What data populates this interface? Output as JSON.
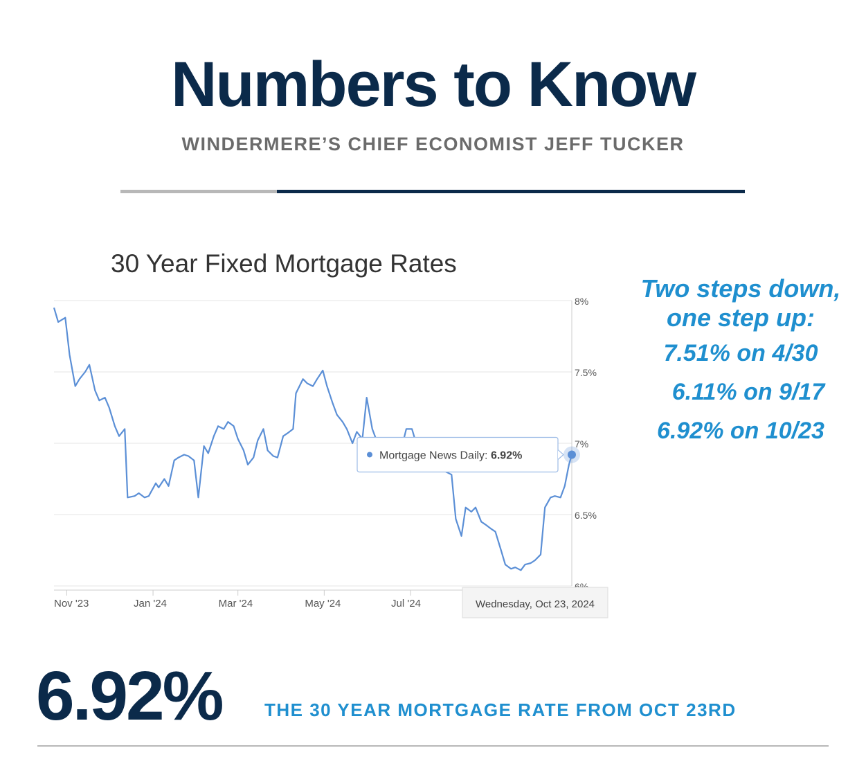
{
  "header": {
    "title": "Numbers to Know",
    "subtitle": "WINDERMERE’S CHIEF ECONOMIST JEFF TUCKER"
  },
  "colors": {
    "navy": "#0b2a4a",
    "subtitle_gray": "#6b6b6b",
    "rule_gray": "#b8b8b8",
    "accent_blue": "#1f8fcf",
    "series_line": "#5b8fd6",
    "grid": "#e6e6e6",
    "axis_text": "#555555"
  },
  "callout": {
    "heading_line1": "Two steps down,",
    "heading_line2": "one step up:",
    "lines": [
      "7.51% on 4/30",
      "6.11% on 9/17",
      "6.92% on 10/23"
    ]
  },
  "highlight": {
    "value": "6.92%",
    "caption": "THE 30 YEAR MORTGAGE RATE FROM OCT 23RD"
  },
  "chart_data": {
    "type": "line",
    "title": "30 Year Fixed Mortgage Rates",
    "ylim": [
      6.0,
      8.0
    ],
    "y_ticks": [
      {
        "value": 8.0,
        "label": "8%"
      },
      {
        "value": 7.5,
        "label": "7.5%"
      },
      {
        "value": 7.0,
        "label": "7%"
      },
      {
        "value": 6.5,
        "label": "6.5%"
      },
      {
        "value": 6.0,
        "label": "6%"
      }
    ],
    "x_ticks": [
      "Nov '23",
      "Jan '24",
      "Mar '24",
      "May '24",
      "Jul '24"
    ],
    "y_axis_position": "right",
    "grid": true,
    "series": [
      {
        "name": "Mortgage News Daily",
        "points": [
          [
            "2023-10-23",
            7.95
          ],
          [
            "2023-10-26",
            7.85
          ],
          [
            "2023-10-31",
            7.88
          ],
          [
            "2023-11-03",
            7.62
          ],
          [
            "2023-11-07",
            7.4
          ],
          [
            "2023-11-10",
            7.45
          ],
          [
            "2023-11-14",
            7.5
          ],
          [
            "2023-11-17",
            7.55
          ],
          [
            "2023-11-21",
            7.37
          ],
          [
            "2023-11-24",
            7.3
          ],
          [
            "2023-11-28",
            7.32
          ],
          [
            "2023-12-01",
            7.25
          ],
          [
            "2023-12-05",
            7.12
          ],
          [
            "2023-12-08",
            7.05
          ],
          [
            "2023-12-12",
            7.1
          ],
          [
            "2023-12-14",
            6.62
          ],
          [
            "2023-12-19",
            6.63
          ],
          [
            "2023-12-22",
            6.65
          ],
          [
            "2023-12-26",
            6.62
          ],
          [
            "2023-12-29",
            6.63
          ],
          [
            "2024-01-03",
            6.72
          ],
          [
            "2024-01-05",
            6.69
          ],
          [
            "2024-01-09",
            6.75
          ],
          [
            "2024-01-12",
            6.7
          ],
          [
            "2024-01-16",
            6.88
          ],
          [
            "2024-01-19",
            6.9
          ],
          [
            "2024-01-23",
            6.92
          ],
          [
            "2024-01-26",
            6.91
          ],
          [
            "2024-01-30",
            6.88
          ],
          [
            "2024-02-02",
            6.62
          ],
          [
            "2024-02-06",
            6.98
          ],
          [
            "2024-02-09",
            6.93
          ],
          [
            "2024-02-13",
            7.05
          ],
          [
            "2024-02-16",
            7.12
          ],
          [
            "2024-02-20",
            7.1
          ],
          [
            "2024-02-23",
            7.15
          ],
          [
            "2024-02-27",
            7.12
          ],
          [
            "2024-03-01",
            7.03
          ],
          [
            "2024-03-05",
            6.95
          ],
          [
            "2024-03-08",
            6.85
          ],
          [
            "2024-03-12",
            6.9
          ],
          [
            "2024-03-15",
            7.02
          ],
          [
            "2024-03-19",
            7.1
          ],
          [
            "2024-03-22",
            6.95
          ],
          [
            "2024-03-26",
            6.91
          ],
          [
            "2024-03-29",
            6.9
          ],
          [
            "2024-04-02",
            7.05
          ],
          [
            "2024-04-05",
            7.07
          ],
          [
            "2024-04-09",
            7.1
          ],
          [
            "2024-04-11",
            7.35
          ],
          [
            "2024-04-16",
            7.45
          ],
          [
            "2024-04-19",
            7.42
          ],
          [
            "2024-04-23",
            7.4
          ],
          [
            "2024-04-26",
            7.45
          ],
          [
            "2024-04-30",
            7.51
          ],
          [
            "2024-05-03",
            7.4
          ],
          [
            "2024-05-07",
            7.28
          ],
          [
            "2024-05-10",
            7.2
          ],
          [
            "2024-05-14",
            7.15
          ],
          [
            "2024-05-17",
            7.1
          ],
          [
            "2024-05-21",
            7.0
          ],
          [
            "2024-05-24",
            7.08
          ],
          [
            "2024-05-28",
            7.03
          ],
          [
            "2024-05-31",
            7.32
          ],
          [
            "2024-06-04",
            7.1
          ],
          [
            "2024-06-07",
            7.02
          ],
          [
            "2024-06-11",
            6.98
          ],
          [
            "2024-06-14",
            7.0
          ],
          [
            "2024-06-18",
            6.98
          ],
          [
            "2024-06-21",
            6.96
          ],
          [
            "2024-06-25",
            6.98
          ],
          [
            "2024-06-28",
            7.1
          ],
          [
            "2024-07-02",
            7.1
          ],
          [
            "2024-07-05",
            7.0
          ],
          [
            "2024-07-09",
            6.92
          ],
          [
            "2024-07-12",
            6.85
          ],
          [
            "2024-07-16",
            6.88
          ],
          [
            "2024-07-19",
            6.87
          ],
          [
            "2024-07-23",
            6.9
          ],
          [
            "2024-07-26",
            6.8
          ],
          [
            "2024-07-30",
            6.78
          ],
          [
            "2024-08-02",
            6.47
          ],
          [
            "2024-08-06",
            6.35
          ],
          [
            "2024-08-09",
            6.55
          ],
          [
            "2024-08-13",
            6.52
          ],
          [
            "2024-08-16",
            6.55
          ],
          [
            "2024-08-20",
            6.45
          ],
          [
            "2024-08-23",
            6.43
          ],
          [
            "2024-08-27",
            6.4
          ],
          [
            "2024-08-30",
            6.38
          ],
          [
            "2024-09-03",
            6.25
          ],
          [
            "2024-09-06",
            6.15
          ],
          [
            "2024-09-10",
            6.12
          ],
          [
            "2024-09-13",
            6.13
          ],
          [
            "2024-09-17",
            6.11
          ],
          [
            "2024-09-20",
            6.15
          ],
          [
            "2024-09-24",
            6.16
          ],
          [
            "2024-09-27",
            6.18
          ],
          [
            "2024-10-01",
            6.22
          ],
          [
            "2024-10-04",
            6.55
          ],
          [
            "2024-10-08",
            6.62
          ],
          [
            "2024-10-11",
            6.63
          ],
          [
            "2024-10-15",
            6.62
          ],
          [
            "2024-10-18",
            6.7
          ],
          [
            "2024-10-21",
            6.85
          ],
          [
            "2024-10-23",
            6.92
          ]
        ]
      }
    ],
    "tooltip": {
      "series_label": "Mortgage News Daily:",
      "value_label": "6.92%",
      "date_label": "Wednesday, Oct 23, 2024",
      "date": "2024-10-23",
      "value": 6.92
    }
  }
}
